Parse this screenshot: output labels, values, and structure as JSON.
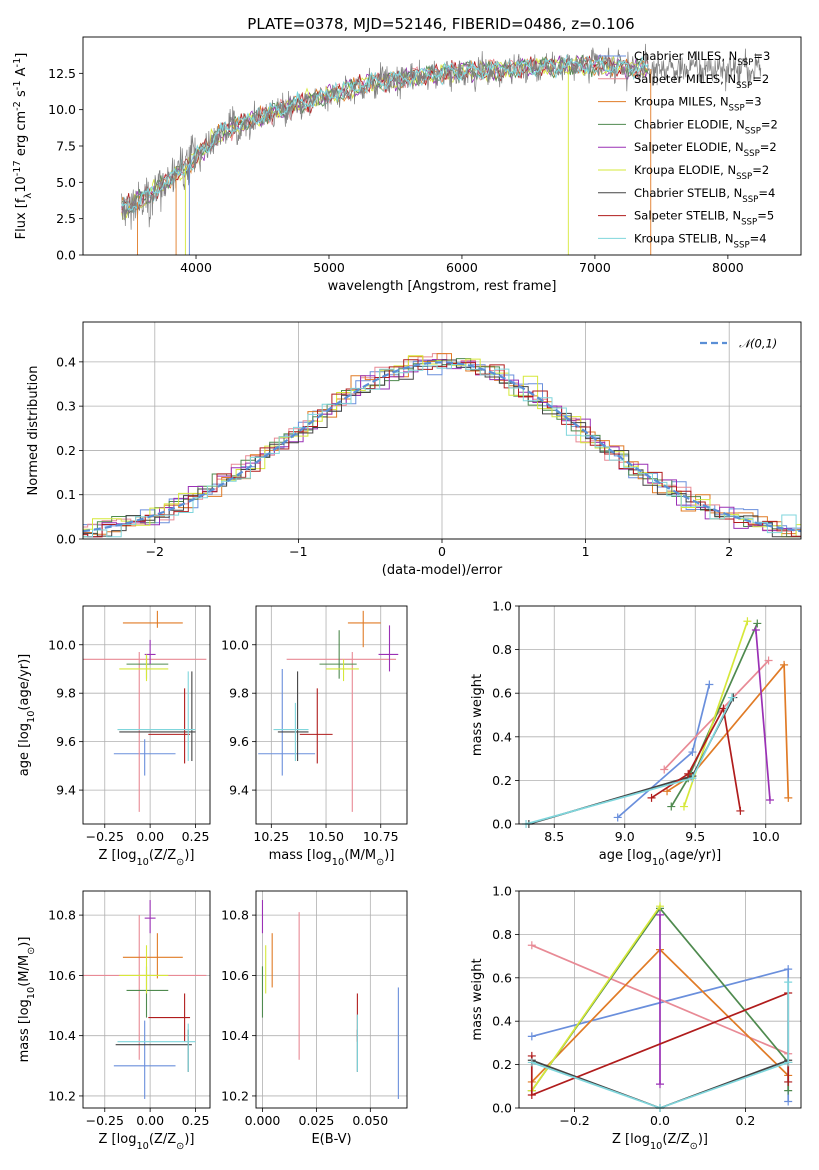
{
  "figure": {
    "title": "PLATE=0378, MJD=52146, FIBERID=0486, z=0.106"
  },
  "models": [
    {
      "label": "Chabrier MILES, N$_{SSP}$=3",
      "color": "#6a8fdc"
    },
    {
      "label": "Salpeter MILES, N$_{SSP}$=2",
      "color": "#e88a95"
    },
    {
      "label": "Kroupa MILES, N$_{SSP}$=3",
      "color": "#e07b26"
    },
    {
      "label": "Chabrier ELODIE, N$_{SSP}$=2",
      "color": "#4f8a4f"
    },
    {
      "label": "Salpeter ELODIE, N$_{SSP}$=2",
      "color": "#9a30b5"
    },
    {
      "label": "Kroupa ELODIE, N$_{SSP}$=2",
      "color": "#d6e83a"
    },
    {
      "label": "Chabrier STELIB, N$_{SSP}$=4",
      "color": "#444444"
    },
    {
      "label": "Salpeter STELIB, N$_{SSP}$=5",
      "color": "#b01c1c"
    },
    {
      "label": "Kroupa STELIB, N$_{SSP}$=4",
      "color": "#7fd6dc"
    }
  ],
  "chart_data": [
    {
      "id": "spectrum",
      "type": "line",
      "title": "PLATE=0378, MJD=52146, FIBERID=0486, z=0.106",
      "xlabel": "wavelength [Angstrom, rest frame]",
      "ylabel": "Flux [f$_λ$10$^{-17}$ erg cm$^{-2}$ s$^{-1}$ A$^{-1}$]",
      "xlim": [
        3150,
        8550
      ],
      "ylim": [
        0,
        15
      ],
      "xticks": [
        4000,
        5000,
        6000,
        7000,
        8000
      ],
      "yticks": [
        0.0,
        2.5,
        5.0,
        7.5,
        10.0,
        12.5
      ],
      "continuum": {
        "x": [
          3450,
          3600,
          3800,
          3950,
          4050,
          4200,
          4400,
          4700,
          5000,
          5300,
          5600,
          5900,
          6200,
          6500,
          6800,
          7100,
          7400
        ],
        "y": [
          3.2,
          3.8,
          5.2,
          6.2,
          7.2,
          8.5,
          9.2,
          10.2,
          11.0,
          11.8,
          12.2,
          12.6,
          12.7,
          12.9,
          13.0,
          13.0,
          12.8
        ]
      },
      "legend": "upper right",
      "grid": false
    },
    {
      "id": "residuals",
      "type": "histogram",
      "xlabel": "(data-model)/error",
      "ylabel": "Normed distribution",
      "xlim": [
        -2.5,
        2.5
      ],
      "ylim": [
        0,
        0.49
      ],
      "xticks": [
        -2,
        -1,
        0,
        1,
        2
      ],
      "yticks": [
        0.0,
        0.1,
        0.2,
        0.3,
        0.4
      ],
      "legend_label": "$\\mathcal{N}(0,1)$",
      "legend": "upper right",
      "grid": true
    },
    {
      "id": "Z_age",
      "type": "errorbar",
      "xlabel": "Z [log$_{10}$(Z/Z$_\\odot$)]",
      "ylabel": "age  [log$_{10}$(age/yr)]",
      "xlim": [
        -0.37,
        0.33
      ],
      "ylim": [
        9.26,
        10.16
      ],
      "xticks": [
        -0.25,
        0.0,
        0.25
      ],
      "xticklabels": [
        "−0.25",
        "0.00",
        "0.25"
      ],
      "yticks": [
        9.4,
        9.6,
        9.8,
        10.0
      ],
      "yticklabels": [
        "9.4",
        "9.6",
        "9.8",
        "10.0"
      ],
      "points": [
        {
          "m": 0,
          "x": -0.03,
          "xe": [
            0.17,
            0.17
          ],
          "y": 9.55,
          "ye": [
            0.09,
            0.06
          ]
        },
        {
          "m": 1,
          "x": -0.06,
          "xe": [
            0.31,
            0.37
          ],
          "y": 9.94,
          "ye": [
            0.63,
            0.03
          ]
        },
        {
          "m": 2,
          "x": 0.04,
          "xe": [
            0.19,
            0.14
          ],
          "y": 10.09,
          "ye": [
            0.02,
            0.05
          ]
        },
        {
          "m": 3,
          "x": -0.02,
          "xe": [
            0.11,
            0.12
          ],
          "y": 9.92,
          "ye": [
            0.06,
            0.04
          ]
        },
        {
          "m": 4,
          "x": 0.0,
          "xe": [
            0.03,
            0.03
          ],
          "y": 9.96,
          "ye": [
            0.04,
            0.06
          ]
        },
        {
          "m": 5,
          "x": -0.02,
          "xe": [
            0.15,
            0.12
          ],
          "y": 9.9,
          "ye": [
            0.05,
            0.06
          ]
        },
        {
          "m": 6,
          "x": 0.23,
          "xe": [
            0.4,
            0.02
          ],
          "y": 9.64,
          "ye": [
            0.12,
            0.25
          ]
        },
        {
          "m": 7,
          "x": 0.19,
          "xe": [
            0.2,
            0.03
          ],
          "y": 9.63,
          "ye": [
            0.12,
            0.19
          ]
        },
        {
          "m": 8,
          "x": 0.21,
          "xe": [
            0.39,
            0.04
          ],
          "y": 9.65,
          "ye": [
            0.13,
            0.24
          ]
        }
      ]
    },
    {
      "id": "mass_age",
      "type": "errorbar",
      "xlabel": "mass [log$_{10}$(M/M$_\\odot$)]",
      "ylabel": "",
      "xlim": [
        10.18,
        10.87
      ],
      "ylim": [
        9.26,
        10.16
      ],
      "xticks": [
        10.25,
        10.5,
        10.75
      ],
      "xticklabels": [
        "10.25",
        "10.50",
        "10.75"
      ],
      "yticks": [
        9.4,
        9.6,
        9.8,
        10.0
      ],
      "yticklabels": [
        "9.4",
        "9.6",
        "9.8",
        "10.0"
      ],
      "points": [
        {
          "m": 0,
          "x": 10.3,
          "xe": [
            0.11,
            0.15
          ],
          "y": 9.55,
          "ye": [
            0.09,
            0.35
          ]
        },
        {
          "m": 1,
          "x": 10.62,
          "xe": [
            0.3,
            0.2
          ],
          "y": 9.94,
          "ye": [
            0.63,
            0.03
          ]
        },
        {
          "m": 2,
          "x": 10.67,
          "xe": [
            0.07,
            0.08
          ],
          "y": 10.09,
          "ye": [
            0.1,
            0.05
          ]
        },
        {
          "m": 3,
          "x": 10.56,
          "xe": [
            0.09,
            0.08
          ],
          "y": 9.92,
          "ye": [
            0.06,
            0.14
          ]
        },
        {
          "m": 4,
          "x": 10.79,
          "xe": [
            0.05,
            0.04
          ],
          "y": 9.96,
          "ye": [
            0.07,
            0.12
          ]
        },
        {
          "m": 5,
          "x": 10.58,
          "xe": [
            0.08,
            0.07
          ],
          "y": 9.9,
          "ye": [
            0.05,
            0.04
          ]
        },
        {
          "m": 6,
          "x": 10.37,
          "xe": [
            0.09,
            0.05
          ],
          "y": 9.64,
          "ye": [
            0.12,
            0.25
          ]
        },
        {
          "m": 7,
          "x": 10.46,
          "xe": [
            0.08,
            0.07
          ],
          "y": 9.63,
          "ye": [
            0.12,
            0.19
          ]
        },
        {
          "m": 8,
          "x": 10.36,
          "xe": [
            0.1,
            0.06
          ],
          "y": 9.65,
          "ye": [
            0.13,
            0.11
          ]
        }
      ]
    },
    {
      "id": "weight_age",
      "type": "line",
      "xlabel": "age  [log$_{10}$(age/yr)]",
      "ylabel": "mass weight",
      "xlim": [
        8.25,
        10.25
      ],
      "ylim": [
        0,
        1.0
      ],
      "xticks": [
        8.5,
        9.0,
        9.5,
        10.0
      ],
      "xticklabels": [
        "8.5",
        "9.0",
        "9.5",
        "10.0"
      ],
      "yticks": [
        0.0,
        0.2,
        0.4,
        0.6,
        0.8,
        1.0
      ],
      "yticklabels": [
        "0.0",
        "0.2",
        "0.4",
        "0.6",
        "0.8",
        "1.0"
      ],
      "series": [
        {
          "m": 0,
          "x": [
            8.95,
            9.48,
            9.6
          ],
          "y": [
            0.03,
            0.33,
            0.64
          ]
        },
        {
          "m": 1,
          "x": [
            9.28,
            10.02
          ],
          "y": [
            0.25,
            0.75
          ]
        },
        {
          "m": 2,
          "x": [
            9.3,
            9.47,
            10.13,
            10.16
          ],
          "y": [
            0.15,
            0.22,
            0.73,
            0.12
          ]
        },
        {
          "m": 3,
          "x": [
            9.33,
            9.45,
            9.94
          ],
          "y": [
            0.08,
            0.21,
            0.92
          ]
        },
        {
          "m": 4,
          "x": [
            9.93,
            10.03
          ],
          "y": [
            0.89,
            0.11
          ]
        },
        {
          "m": 5,
          "x": [
            9.42,
            9.87
          ],
          "y": [
            0.08,
            0.93
          ]
        },
        {
          "m": 6,
          "x": [
            8.32,
            9.48,
            9.77
          ],
          "y": [
            0.0,
            0.22,
            0.58
          ]
        },
        {
          "m": 7,
          "x": [
            9.19,
            9.45,
            9.7,
            9.82
          ],
          "y": [
            0.12,
            0.23,
            0.53,
            0.06
          ]
        },
        {
          "m": 8,
          "x": [
            8.3,
            9.48,
            9.76
          ],
          "y": [
            0.0,
            0.21,
            0.58
          ]
        }
      ]
    },
    {
      "id": "Z_mass",
      "type": "errorbar",
      "xlabel": "Z [log$_{10}$(Z/Z$_\\odot$)]",
      "ylabel": "mass [log$_{10}$(M/M$_\\odot$)]",
      "xlim": [
        -0.37,
        0.33
      ],
      "ylim": [
        10.16,
        10.88
      ],
      "xticks": [
        -0.25,
        0.0,
        0.25
      ],
      "xticklabels": [
        "−0.25",
        "0.00",
        "0.25"
      ],
      "yticks": [
        10.2,
        10.4,
        10.6,
        10.8
      ],
      "yticklabels": [
        "10.2",
        "10.4",
        "10.6",
        "10.8"
      ],
      "points": [
        {
          "m": 0,
          "x": -0.03,
          "xe": [
            0.17,
            0.17
          ],
          "y": 10.3,
          "ye": [
            0.11,
            0.15
          ]
        },
        {
          "m": 1,
          "x": -0.06,
          "xe": [
            0.31,
            0.37
          ],
          "y": 10.6,
          "ye": [
            0.28,
            0.2
          ]
        },
        {
          "m": 2,
          "x": 0.04,
          "xe": [
            0.19,
            0.14
          ],
          "y": 10.66,
          "ye": [
            0.07,
            0.08
          ]
        },
        {
          "m": 3,
          "x": -0.02,
          "xe": [
            0.11,
            0.12
          ],
          "y": 10.55,
          "ye": [
            0.09,
            0.08
          ]
        },
        {
          "m": 4,
          "x": 0.0,
          "xe": [
            0.03,
            0.03
          ],
          "y": 10.79,
          "ye": [
            0.05,
            0.06
          ]
        },
        {
          "m": 5,
          "x": -0.02,
          "xe": [
            0.15,
            0.12
          ],
          "y": 10.6,
          "ye": [
            0.06,
            0.1
          ]
        },
        {
          "m": 6,
          "x": 0.21,
          "xe": [
            0.4,
            0.02
          ],
          "y": 10.37,
          "ye": [
            0.09,
            0.05
          ]
        },
        {
          "m": 7,
          "x": 0.19,
          "xe": [
            0.2,
            0.03
          ],
          "y": 10.46,
          "ye": [
            0.08,
            0.08
          ]
        },
        {
          "m": 8,
          "x": 0.21,
          "xe": [
            0.39,
            0.04
          ],
          "y": 10.38,
          "ye": [
            0.1,
            0.06
          ]
        }
      ]
    },
    {
      "id": "ebv_mass",
      "type": "errorbar",
      "xlabel": "E(B-V)",
      "ylabel": "",
      "xlim": [
        -0.003,
        0.067
      ],
      "ylim": [
        10.16,
        10.88
      ],
      "xticks": [
        0.0,
        0.025,
        0.05
      ],
      "xticklabels": [
        "0.000",
        "0.025",
        "0.050"
      ],
      "yticks": [
        10.2,
        10.4,
        10.6,
        10.8
      ],
      "yticklabels": [
        "10.2",
        "10.4",
        "10.6",
        "10.8"
      ],
      "points": [
        {
          "m": 0,
          "x": 0.063,
          "xe": [
            0,
            0
          ],
          "y": 10.37,
          "ye": [
            0.18,
            0.19
          ]
        },
        {
          "m": 1,
          "x": 0.017,
          "xe": [
            0,
            0
          ],
          "y": 10.56,
          "ye": [
            0.24,
            0.25
          ]
        },
        {
          "m": 2,
          "x": 0.0045,
          "xe": [
            0,
            0
          ],
          "y": 10.66,
          "ye": [
            0.1,
            0.08
          ]
        },
        {
          "m": 3,
          "x": 0.0,
          "xe": [
            0,
            0
          ],
          "y": 10.55,
          "ye": [
            0.09,
            0.08
          ]
        },
        {
          "m": 4,
          "x": 0.0,
          "xe": [
            0,
            0
          ],
          "y": 10.79,
          "ye": [
            0.05,
            0.06
          ]
        },
        {
          "m": 5,
          "x": 0.0015,
          "xe": [
            0,
            0
          ],
          "y": 10.6,
          "ye": [
            0.06,
            0.1
          ]
        },
        {
          "m": 6,
          "x": 0.044,
          "xe": [
            0,
            0
          ],
          "y": 10.37,
          "ye": [
            0.09,
            0.05
          ]
        },
        {
          "m": 7,
          "x": 0.044,
          "xe": [
            0,
            0
          ],
          "y": 10.46,
          "ye": [
            0.08,
            0.08
          ]
        },
        {
          "m": 8,
          "x": 0.044,
          "xe": [
            0,
            0
          ],
          "y": 10.38,
          "ye": [
            0.1,
            0.09
          ]
        }
      ]
    },
    {
      "id": "weight_Z",
      "type": "line",
      "xlabel": "Z [log$_{10}$(Z/Z$_\\odot$)]",
      "ylabel": "mass weight",
      "xlim": [
        -0.33,
        0.33
      ],
      "ylim": [
        0,
        1.0
      ],
      "xticks": [
        -0.2,
        0.0,
        0.2
      ],
      "xticklabels": [
        "−0.2",
        "0.0",
        "0.2"
      ],
      "yticks": [
        0.0,
        0.2,
        0.4,
        0.6,
        0.8,
        1.0
      ],
      "yticklabels": [
        "0.0",
        "0.2",
        "0.4",
        "0.6",
        "0.8",
        "1.0"
      ],
      "series": [
        {
          "m": 0,
          "x": [
            -0.3,
            0.3,
            0.3
          ],
          "y": [
            0.33,
            0.64,
            0.03
          ]
        },
        {
          "m": 1,
          "x": [
            -0.3,
            0.3
          ],
          "y": [
            0.75,
            0.25
          ]
        },
        {
          "m": 2,
          "x": [
            -0.3,
            0.0,
            0.3
          ],
          "y": [
            0.12,
            0.73,
            0.15
          ]
        },
        {
          "m": 3,
          "x": [
            -0.3,
            0.0,
            0.3,
            0.3
          ],
          "y": [
            0.08,
            0.92,
            0.21,
            0.08
          ]
        },
        {
          "m": 4,
          "x": [
            0.0,
            0.0
          ],
          "y": [
            0.89,
            0.11
          ]
        },
        {
          "m": 5,
          "x": [
            -0.3,
            0.0
          ],
          "y": [
            0.08,
            0.93
          ]
        },
        {
          "m": 6,
          "x": [
            -0.3,
            0.0,
            0.3
          ],
          "y": [
            0.22,
            0.0,
            0.22
          ]
        },
        {
          "m": 7,
          "x": [
            -0.3,
            -0.3,
            0.3,
            0.3
          ],
          "y": [
            0.24,
            0.06,
            0.53,
            0.12
          ]
        },
        {
          "m": 8,
          "x": [
            -0.3,
            0.0,
            0.3,
            0.3
          ],
          "y": [
            0.21,
            0.0,
            0.21,
            0.58
          ]
        }
      ]
    }
  ]
}
